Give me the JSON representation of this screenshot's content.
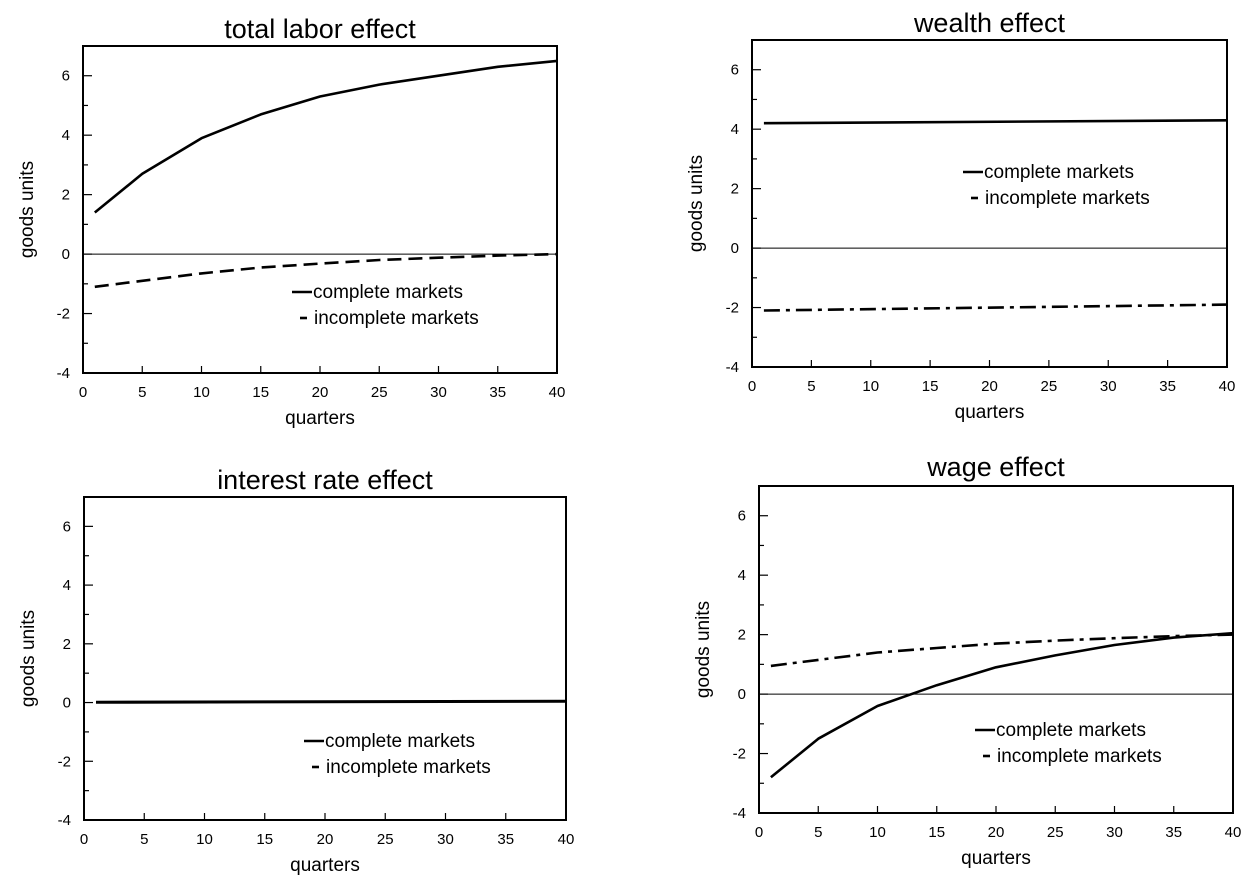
{
  "chart_data": [
    {
      "type": "line",
      "title": "total labor effect",
      "xlabel": "quarters",
      "ylabel": "goods units",
      "xlim": [
        0,
        40
      ],
      "ylim": [
        -4,
        7
      ],
      "xticks": [
        0,
        5,
        10,
        15,
        20,
        25,
        30,
        35,
        40
      ],
      "yticks": [
        -4,
        -2,
        0,
        2,
        4,
        6
      ],
      "zero_line": true,
      "legend": {
        "position": "bottom-right",
        "entries": [
          "complete markets",
          "incomplete markets"
        ]
      },
      "series": [
        {
          "name": "complete markets",
          "style": "solid",
          "x": [
            1,
            5,
            10,
            15,
            20,
            25,
            30,
            35,
            40
          ],
          "y": [
            1.4,
            2.7,
            3.9,
            4.7,
            5.3,
            5.7,
            6.0,
            6.3,
            6.5
          ]
        },
        {
          "name": "incomplete markets",
          "style": "dashed",
          "x": [
            1,
            5,
            10,
            15,
            20,
            25,
            30,
            35,
            40
          ],
          "y": [
            -1.1,
            -0.9,
            -0.65,
            -0.45,
            -0.32,
            -0.2,
            -0.12,
            -0.05,
            0.0
          ]
        }
      ]
    },
    {
      "type": "line",
      "title": "wealth effect",
      "xlabel": "quarters",
      "ylabel": "goods units",
      "xlim": [
        0,
        40
      ],
      "ylim": [
        -4,
        7
      ],
      "xticks": [
        0,
        5,
        10,
        15,
        20,
        25,
        30,
        35,
        40
      ],
      "yticks": [
        -4,
        -2,
        0,
        2,
        4,
        6
      ],
      "zero_line": true,
      "legend": {
        "position": "right",
        "entries": [
          "complete markets",
          "incomplete markets"
        ]
      },
      "series": [
        {
          "name": "complete markets",
          "style": "solid",
          "x": [
            1,
            40
          ],
          "y": [
            4.2,
            4.3
          ]
        },
        {
          "name": "incomplete markets",
          "style": "dashdot",
          "x": [
            1,
            40
          ],
          "y": [
            -2.1,
            -1.9
          ]
        }
      ]
    },
    {
      "type": "line",
      "title": "interest rate effect",
      "xlabel": "quarters",
      "ylabel": "goods units",
      "xlim": [
        0,
        40
      ],
      "ylim": [
        -4,
        7
      ],
      "xticks": [
        0,
        5,
        10,
        15,
        20,
        25,
        30,
        35,
        40
      ],
      "yticks": [
        -4,
        -2,
        0,
        2,
        4,
        6
      ],
      "zero_line": false,
      "legend": {
        "position": "bottom-right",
        "entries": [
          "complete markets",
          "incomplete markets"
        ]
      },
      "series": [
        {
          "name": "complete markets",
          "style": "solid",
          "x": [
            1,
            40
          ],
          "y": [
            0.02,
            0.05
          ]
        },
        {
          "name": "incomplete markets",
          "style": "solid",
          "x": [
            1,
            40
          ],
          "y": [
            0.0,
            0.04
          ]
        }
      ]
    },
    {
      "type": "line",
      "title": "wage effect",
      "xlabel": "quarters",
      "ylabel": "goods units",
      "xlim": [
        0,
        40
      ],
      "ylim": [
        -4,
        7
      ],
      "xticks": [
        0,
        5,
        10,
        15,
        20,
        25,
        30,
        35,
        40
      ],
      "yticks": [
        -4,
        -2,
        0,
        2,
        4,
        6
      ],
      "zero_line": true,
      "legend": {
        "position": "bottom-right",
        "entries": [
          "complete markets",
          "incomplete markets"
        ]
      },
      "series": [
        {
          "name": "complete markets",
          "style": "solid",
          "x": [
            1,
            5,
            10,
            15,
            20,
            25,
            30,
            35,
            40
          ],
          "y": [
            -2.8,
            -1.5,
            -0.4,
            0.3,
            0.9,
            1.3,
            1.65,
            1.9,
            2.05
          ]
        },
        {
          "name": "incomplete markets",
          "style": "dashdot",
          "x": [
            1,
            5,
            10,
            15,
            20,
            25,
            30,
            35,
            40
          ],
          "y": [
            0.95,
            1.15,
            1.4,
            1.55,
            1.7,
            1.8,
            1.88,
            1.95,
            2.0
          ]
        }
      ]
    }
  ]
}
